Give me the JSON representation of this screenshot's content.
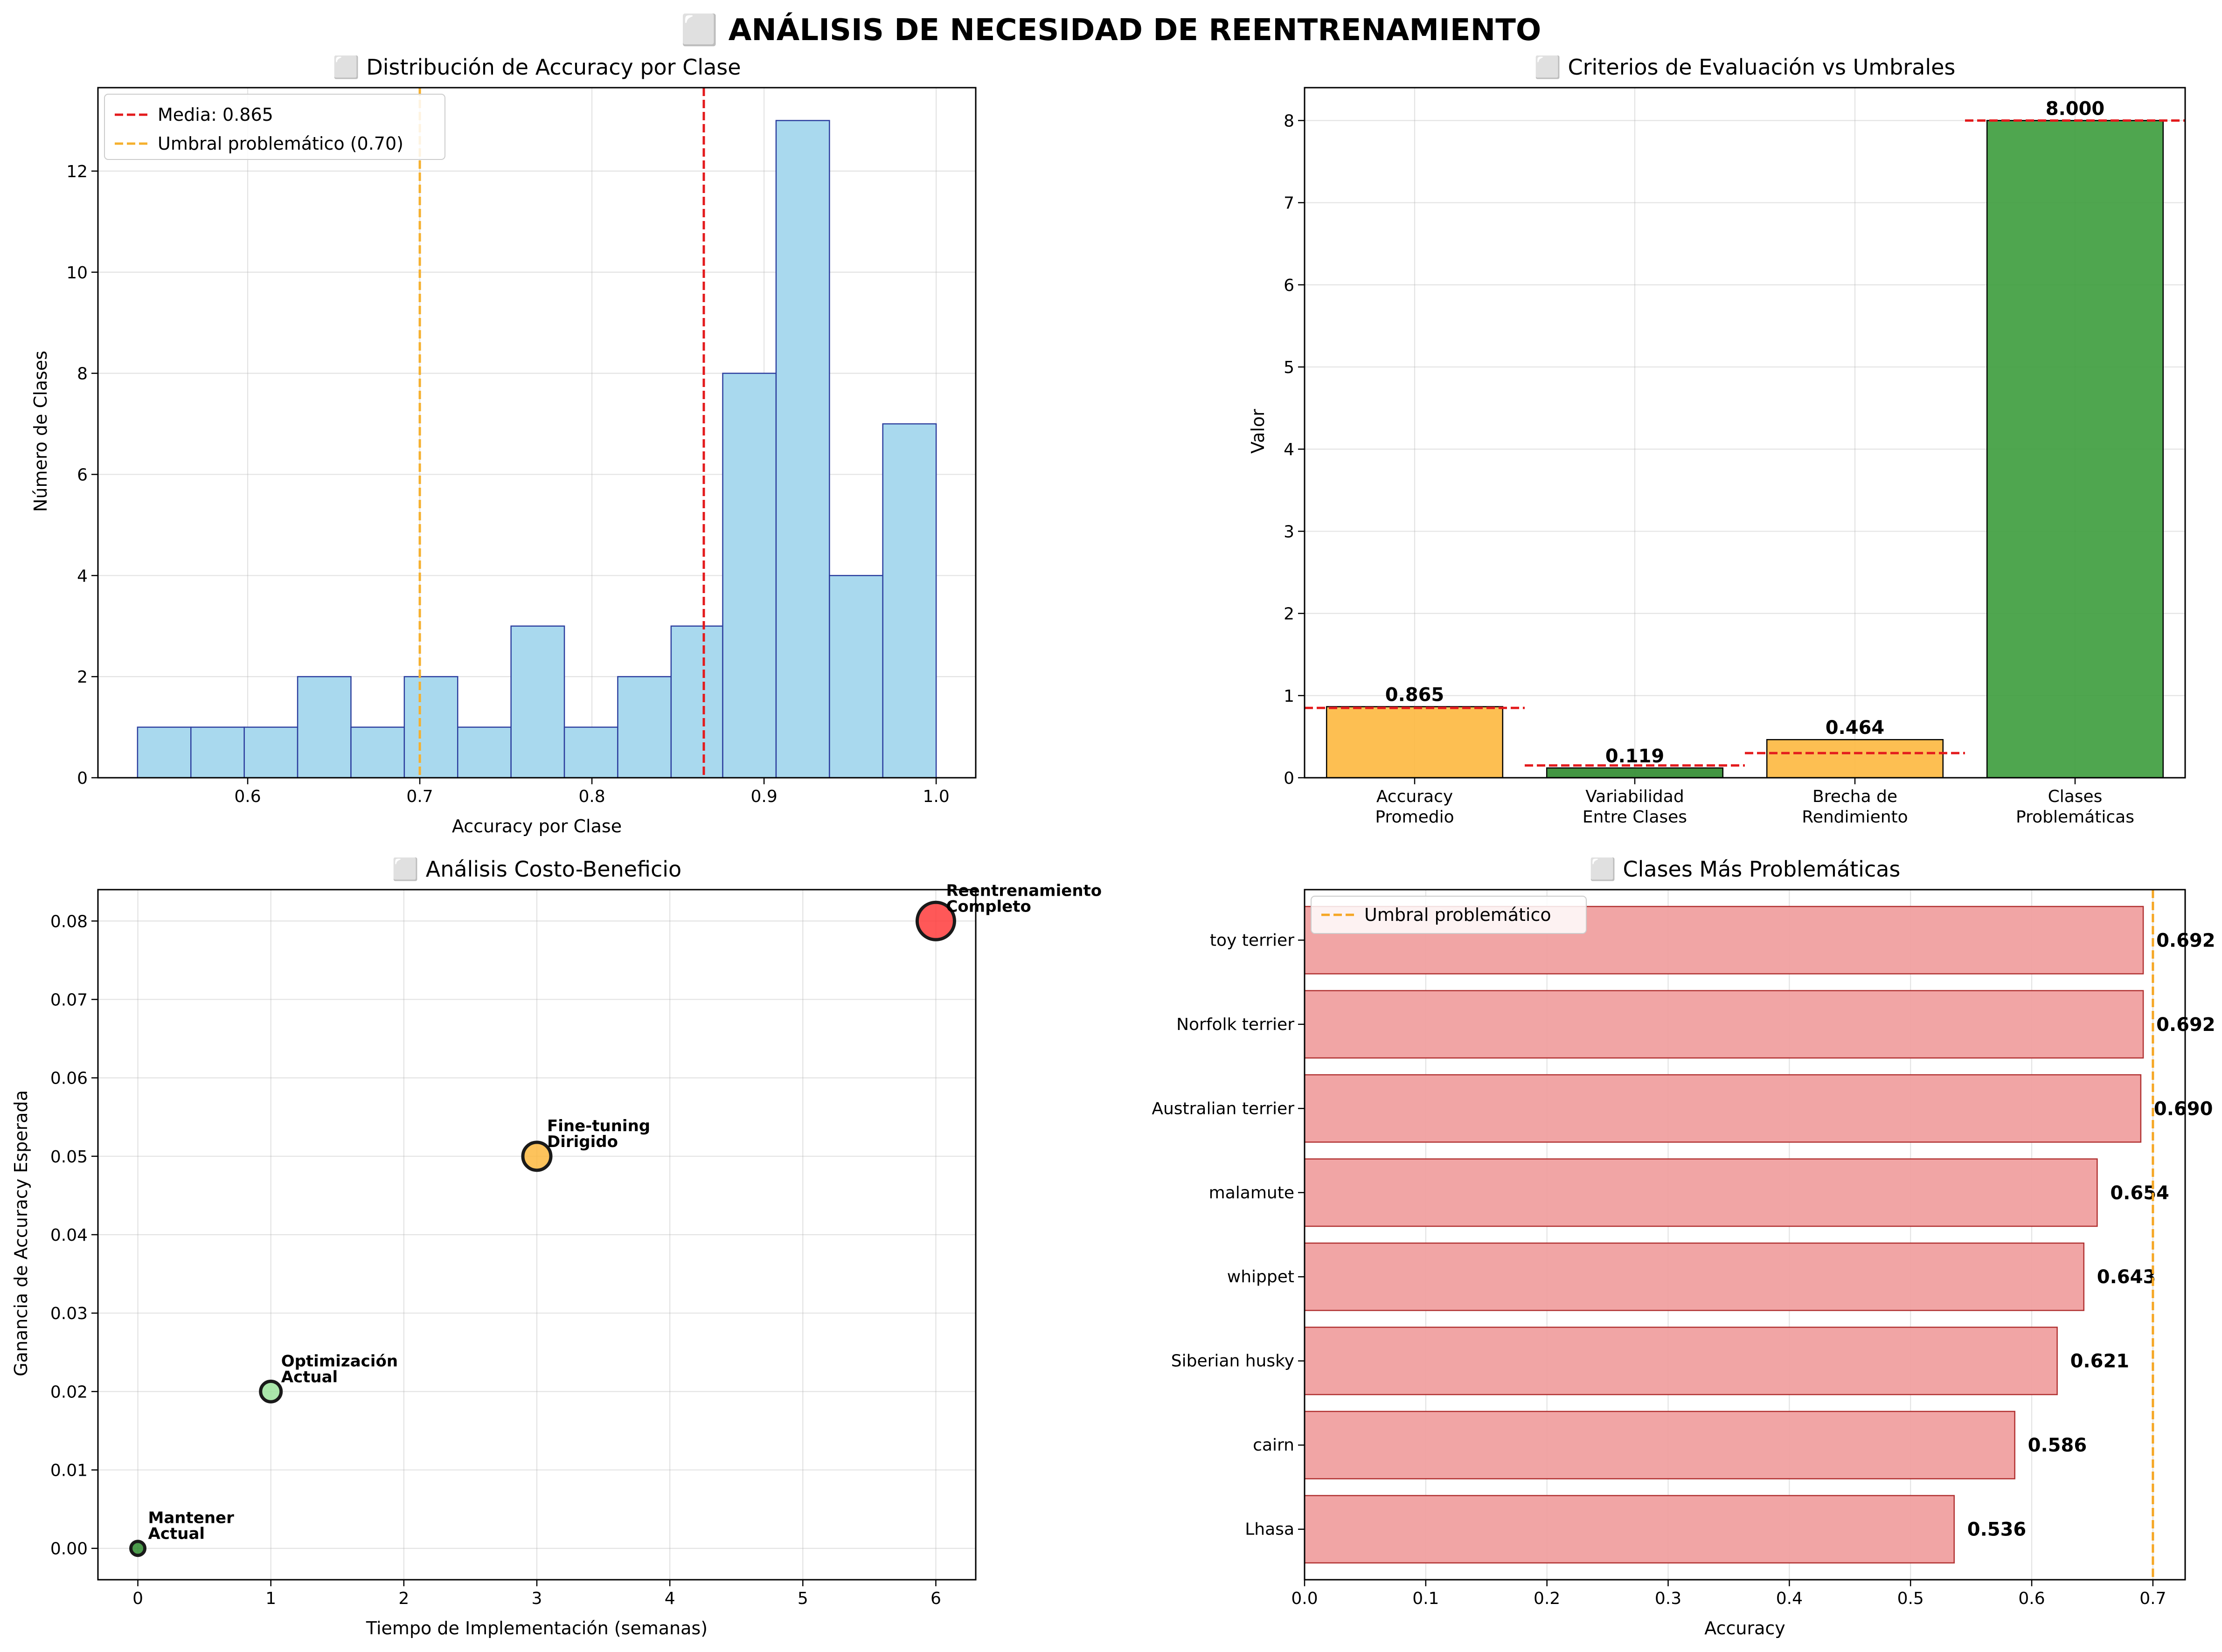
{
  "suptitle": "⬜ ANÁLISIS DE NECESIDAD DE REENTRENAMIENTO",
  "chart_data": [
    {
      "type": "bar",
      "subtype": "histogram",
      "title": "⬜ Distribución de Accuracy por Clase",
      "xlabel": "Accuracy por Clase",
      "ylabel": "Número de Clases",
      "xlim": [
        0.513,
        1.023
      ],
      "ylim": [
        0,
        13.65
      ],
      "xticks": [
        0.6,
        0.7,
        0.8,
        0.9,
        1.0
      ],
      "xtick_labels": [
        "0.6",
        "0.7",
        "0.8",
        "0.9",
        "1.0"
      ],
      "yticks": [
        0,
        2,
        4,
        6,
        8,
        10,
        12
      ],
      "ytick_labels": [
        "0",
        "2",
        "4",
        "6",
        "8",
        "10",
        "12"
      ],
      "bins": [
        {
          "x0": 0.536,
          "x1": 0.567,
          "count": 1
        },
        {
          "x0": 0.567,
          "x1": 0.598,
          "count": 1
        },
        {
          "x0": 0.598,
          "x1": 0.629,
          "count": 1
        },
        {
          "x0": 0.629,
          "x1": 0.66,
          "count": 2
        },
        {
          "x0": 0.66,
          "x1": 0.691,
          "count": 1
        },
        {
          "x0": 0.691,
          "x1": 0.722,
          "count": 2
        },
        {
          "x0": 0.722,
          "x1": 0.753,
          "count": 1
        },
        {
          "x0": 0.753,
          "x1": 0.784,
          "count": 3
        },
        {
          "x0": 0.784,
          "x1": 0.815,
          "count": 1
        },
        {
          "x0": 0.815,
          "x1": 0.846,
          "count": 2
        },
        {
          "x0": 0.846,
          "x1": 0.876,
          "count": 3
        },
        {
          "x0": 0.876,
          "x1": 0.907,
          "count": 8
        },
        {
          "x0": 0.907,
          "x1": 0.938,
          "count": 13
        },
        {
          "x0": 0.938,
          "x1": 0.969,
          "count": 4
        },
        {
          "x0": 0.969,
          "x1": 1.0,
          "count": 7
        }
      ],
      "bar_color": "#a9d9ee",
      "edge_color": "#2c3e9e",
      "vlines": [
        {
          "x": 0.865,
          "color": "#e31a1c",
          "label": "Media: 0.865"
        },
        {
          "x": 0.7,
          "color": "#f5b02e",
          "label": "Umbral problemático (0.70)"
        }
      ],
      "legend_position": "top-left",
      "grid": true
    },
    {
      "type": "bar",
      "title": "⬜ Criterios de Evaluación vs Umbrales",
      "xlabel": "",
      "ylabel": "Valor",
      "ylim": [
        0,
        8.4
      ],
      "yticks": [
        0,
        1,
        2,
        3,
        4,
        5,
        6,
        7,
        8
      ],
      "ytick_labels": [
        "0",
        "1",
        "2",
        "3",
        "4",
        "5",
        "6",
        "7",
        "8"
      ],
      "categories": [
        [
          "Accuracy",
          "Promedio"
        ],
        [
          "Variabilidad",
          "Entre Clases"
        ],
        [
          "Brecha de",
          "Rendimiento"
        ],
        [
          "Clases",
          "Problemáticas"
        ]
      ],
      "values": [
        0.865,
        0.119,
        0.464,
        8.0
      ],
      "value_labels": [
        "0.865",
        "0.119",
        "0.464",
        "8.000"
      ],
      "thresholds": [
        0.85,
        0.15,
        0.3,
        8.0
      ],
      "colors": [
        "#fdb83f",
        "#2e8b2e",
        "#fdb83f",
        "#3c9c3c"
      ],
      "threshold_color": "#e31a1c",
      "grid": true
    },
    {
      "type": "scatter",
      "title": "⬜ Análisis Costo-Beneficio",
      "xlabel": "Tiempo de Implementación (semanas)",
      "ylabel": "Ganancia de Accuracy Esperada",
      "xlim": [
        -0.3,
        6.3
      ],
      "ylim": [
        -0.004,
        0.084
      ],
      "xticks": [
        0,
        1,
        2,
        3,
        4,
        5,
        6
      ],
      "xtick_labels": [
        "0",
        "1",
        "2",
        "3",
        "4",
        "5",
        "6"
      ],
      "yticks": [
        0.0,
        0.01,
        0.02,
        0.03,
        0.04,
        0.05,
        0.06,
        0.07,
        0.08
      ],
      "ytick_labels": [
        "0.00",
        "0.01",
        "0.02",
        "0.03",
        "0.04",
        "0.05",
        "0.06",
        "0.07",
        "0.08"
      ],
      "points": [
        {
          "x": 0,
          "y": 0.0,
          "label": [
            "Mantener",
            "Actual"
          ],
          "color": "#2e8b2e",
          "size": 1
        },
        {
          "x": 1,
          "y": 0.02,
          "label": [
            "Optimización",
            "Actual"
          ],
          "color": "#9be39b",
          "size": 2
        },
        {
          "x": 3,
          "y": 0.05,
          "label": [
            "Fine-tuning",
            "Dirigido"
          ],
          "color": "#fdb83f",
          "size": 3
        },
        {
          "x": 6,
          "y": 0.08,
          "label": [
            "Reentrenamiento",
            "Completo"
          ],
          "color": "#ff3b3b",
          "size": 4
        }
      ],
      "grid": true
    },
    {
      "type": "bar",
      "orientation": "horizontal",
      "title": "⬜ Clases Más Problemáticas",
      "xlabel": "Accuracy",
      "ylabel": "",
      "xlim": [
        0,
        0.7266
      ],
      "xticks": [
        0.0,
        0.1,
        0.2,
        0.3,
        0.4,
        0.5,
        0.6,
        0.7
      ],
      "xtick_labels": [
        "0.0",
        "0.1",
        "0.2",
        "0.3",
        "0.4",
        "0.5",
        "0.6",
        "0.7"
      ],
      "categories": [
        "toy terrier",
        "Norfolk terrier",
        "Australian terrier",
        "malamute",
        "whippet",
        "Siberian husky",
        "cairn",
        "Lhasa"
      ],
      "values": [
        0.692,
        0.692,
        0.69,
        0.654,
        0.643,
        0.621,
        0.586,
        0.536
      ],
      "value_labels": [
        "0.692",
        "0.692",
        "0.690",
        "0.654",
        "0.643",
        "0.621",
        "0.586",
        "0.536"
      ],
      "bar_color": "#f0a0a0",
      "edge_color": "#b03030",
      "vline": {
        "x": 0.7,
        "color": "#f5a623",
        "label": "Umbral problemático"
      },
      "legend_position": "top-left",
      "grid": true
    }
  ]
}
